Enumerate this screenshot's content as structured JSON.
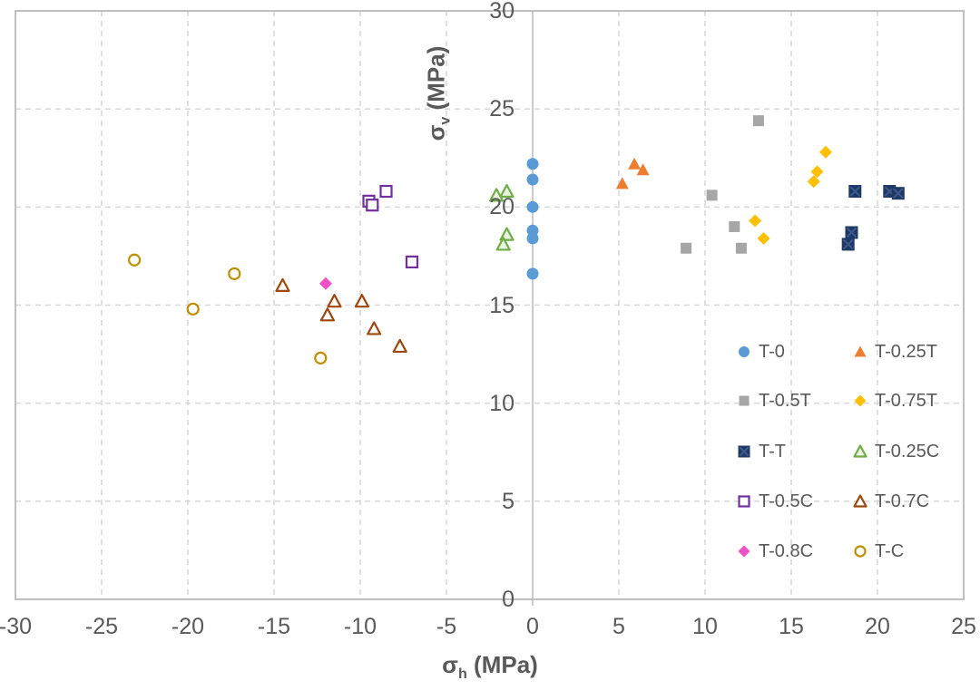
{
  "colors": {
    "grid": "#D9D9D9",
    "axis": "#BFBFBF",
    "text": "#595959",
    "background": "#FFFFFF"
  },
  "chart": {
    "x_axis": {
      "symbol": "σ",
      "subscript": "h",
      "unit": " (MPa)"
    },
    "y_axis": {
      "symbol": "σ",
      "subscript": "v",
      "unit": " (MPa)"
    }
  },
  "chart_data": {
    "type": "scatter",
    "title": "",
    "xlabel": "sigma_h (MPa)",
    "ylabel": "sigma_v (MPa)",
    "xlim": [
      -30,
      25
    ],
    "ylim": [
      0,
      30
    ],
    "xticks": [
      -30,
      -25,
      -20,
      -15,
      -10,
      -5,
      0,
      5,
      10,
      15,
      20,
      25
    ],
    "yticks": [
      0,
      5,
      10,
      15,
      20,
      25,
      30
    ],
    "grid": "dashed",
    "legend_position": "inside-bottom-right",
    "series": [
      {
        "name": "T-0",
        "marker": "circle",
        "fill": "#5B9BD5",
        "stroke": "",
        "points": [
          [
            0,
            22.2
          ],
          [
            0,
            21.4
          ],
          [
            0,
            20.0
          ],
          [
            0,
            18.8
          ],
          [
            0,
            18.4
          ],
          [
            0,
            16.6
          ]
        ]
      },
      {
        "name": "T-0.25T",
        "marker": "triangle",
        "fill": "#ED7D31",
        "stroke": "",
        "points": [
          [
            5.9,
            22.2
          ],
          [
            6.4,
            21.9
          ],
          [
            5.2,
            21.2
          ]
        ]
      },
      {
        "name": "T-0.5T",
        "marker": "square",
        "fill": "#A6A6A6",
        "stroke": "",
        "points": [
          [
            13.1,
            24.4
          ],
          [
            10.4,
            20.6
          ],
          [
            11.7,
            19.0
          ],
          [
            12.1,
            17.9
          ],
          [
            8.9,
            17.9
          ]
        ]
      },
      {
        "name": "T-0.75T",
        "marker": "diamond",
        "fill": "#FFC000",
        "stroke": "",
        "points": [
          [
            17.0,
            22.8
          ],
          [
            16.5,
            21.8
          ],
          [
            16.3,
            21.3
          ],
          [
            12.9,
            19.3
          ],
          [
            13.4,
            18.4
          ]
        ]
      },
      {
        "name": "T-T",
        "marker": "square-x",
        "fill": "#1F3864",
        "stroke": "",
        "points": [
          [
            18.7,
            20.8
          ],
          [
            20.7,
            20.8
          ],
          [
            21.2,
            20.7
          ],
          [
            18.5,
            18.7
          ],
          [
            18.3,
            18.1
          ]
        ]
      },
      {
        "name": "T-0.25C",
        "marker": "triangle",
        "fill": "#EAF3E2",
        "stroke": "#70AD47",
        "points": [
          [
            -1.5,
            20.8
          ],
          [
            -2.1,
            20.6
          ],
          [
            -1.5,
            18.6
          ],
          [
            -1.7,
            18.1
          ]
        ]
      },
      {
        "name": "T-0.5C",
        "marker": "square",
        "fill": "#FFFFFF",
        "stroke": "#7030A0",
        "points": [
          [
            -8.5,
            20.8
          ],
          [
            -9.5,
            20.3
          ],
          [
            -9.3,
            20.1
          ],
          [
            -7.0,
            17.2
          ]
        ]
      },
      {
        "name": "T-0.7C",
        "marker": "triangle",
        "fill": "#FFFFFF",
        "stroke": "#9E480E",
        "points": [
          [
            -14.5,
            16.0
          ],
          [
            -11.5,
            15.2
          ],
          [
            -9.9,
            15.2
          ],
          [
            -11.9,
            14.5
          ],
          [
            -9.2,
            13.8
          ],
          [
            -7.7,
            12.9
          ]
        ]
      },
      {
        "name": "T-0.8C",
        "marker": "diamond",
        "fill": "#F04FC6",
        "stroke": "",
        "points": [
          [
            -12.0,
            16.1
          ]
        ]
      },
      {
        "name": "T-C",
        "marker": "circle",
        "fill": "#FFFFFF",
        "stroke": "#BF8F00",
        "points": [
          [
            -23.1,
            17.3
          ],
          [
            -17.3,
            16.6
          ],
          [
            -19.7,
            14.8
          ],
          [
            -12.3,
            12.3
          ]
        ]
      }
    ]
  }
}
